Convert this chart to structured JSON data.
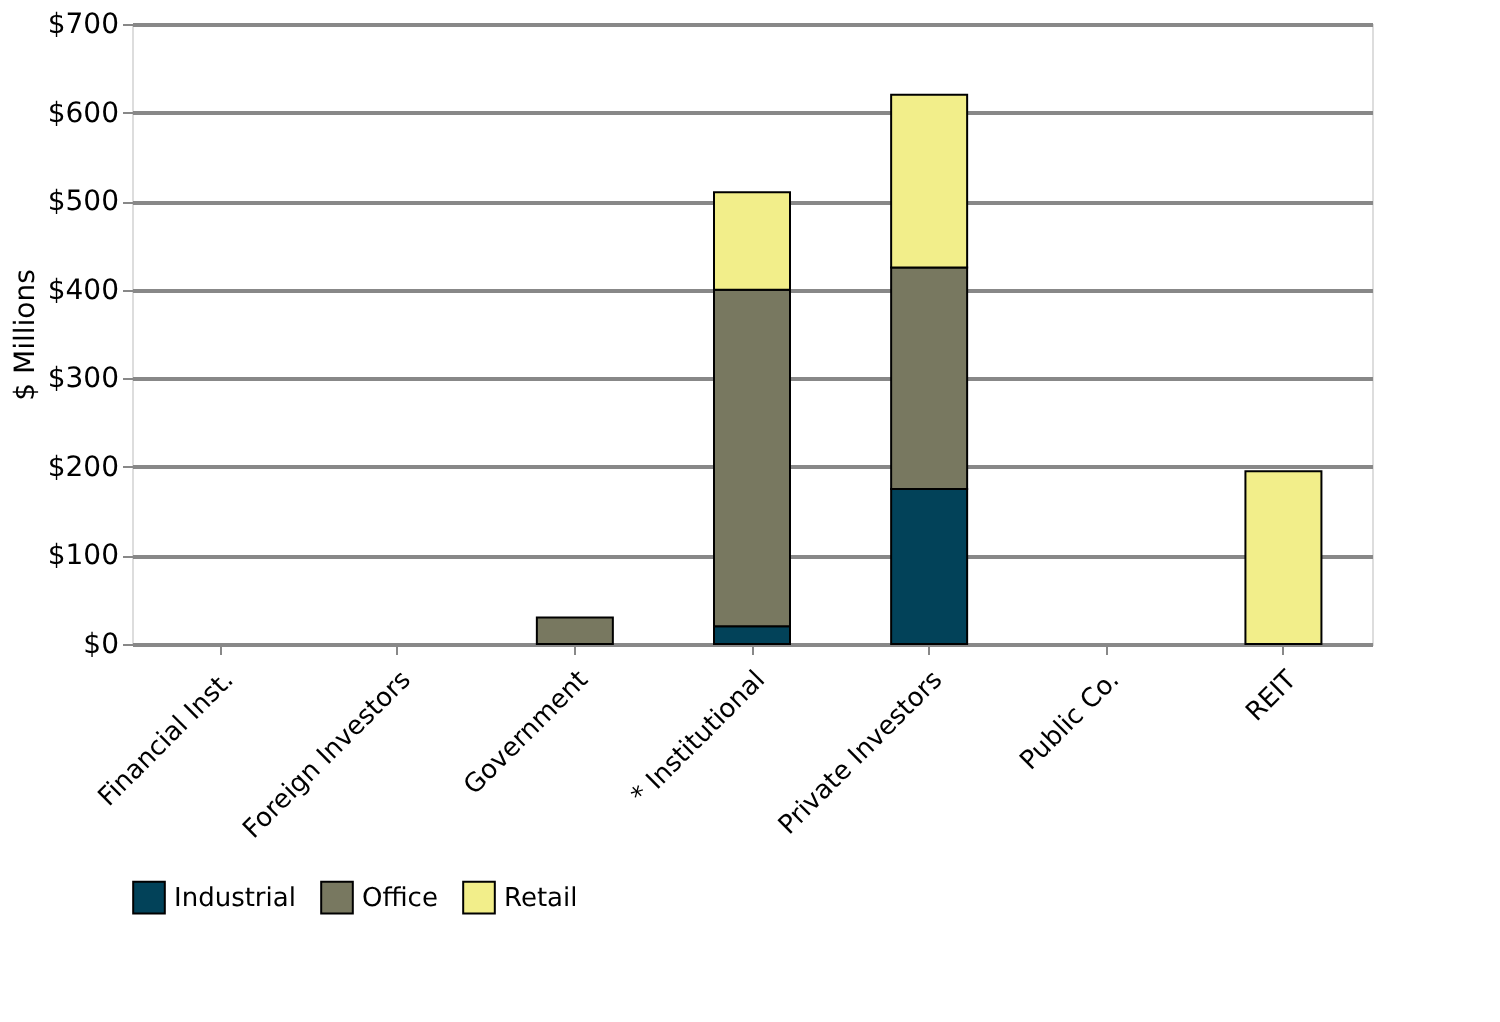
{
  "chart_data": {
    "type": "bar",
    "stacked": true,
    "ylabel": "$ Millions",
    "categories": [
      "Financial Inst.",
      "Foreign Investors",
      "Government",
      "* Institutional",
      "Private Investors",
      "Public Co.",
      "REIT"
    ],
    "series": [
      {
        "name": "Industrial",
        "color": "#024259",
        "values": [
          null,
          null,
          null,
          20,
          175,
          null,
          null
        ]
      },
      {
        "name": "Office",
        "color": "#787860",
        "values": [
          null,
          null,
          30,
          380,
          250,
          null,
          null
        ]
      },
      {
        "name": "Retail",
        "color": "#f2ee8a",
        "values": [
          null,
          null,
          null,
          110,
          195,
          null,
          195
        ]
      }
    ],
    "ylim": [
      0,
      700
    ],
    "yticks": [
      {
        "value": 0,
        "label": "$0"
      },
      {
        "value": 100,
        "label": "$100"
      },
      {
        "value": 200,
        "label": "$200"
      },
      {
        "value": 300,
        "label": "$300"
      },
      {
        "value": 400,
        "label": "$400"
      },
      {
        "value": 500,
        "label": "$500"
      },
      {
        "value": 600,
        "label": "$600"
      },
      {
        "value": 700,
        "label": "$700"
      }
    ],
    "grid": "y",
    "legend": "bottom"
  }
}
